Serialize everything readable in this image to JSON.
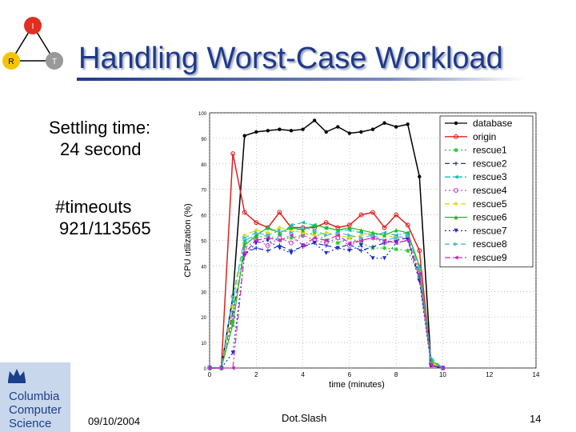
{
  "slide": {
    "title": "Handling Worst-Case Workload",
    "notes": [
      {
        "line1": "Settling time:",
        "line2": "24 second"
      },
      {
        "line1": "#timeouts",
        "line2": "921/113565"
      }
    ],
    "logo_letters": {
      "top": "I",
      "left": "R",
      "right": "T"
    },
    "institution": {
      "line1": "Columbia",
      "line2": "Computer",
      "line3": "Science"
    },
    "footer": {
      "date": "09/10/2004",
      "center": "Dot.Slash",
      "page": "14"
    },
    "colors": {
      "title": "#1f3a8a",
      "institution_bg": "#c9d7ec",
      "logo_top": "#e03020",
      "logo_left": "#f5c400",
      "logo_right": "#999999"
    }
  },
  "chart_data": {
    "type": "line",
    "xlabel": "time (minutes)",
    "ylabel": "CPU utilization (%)",
    "xlim": [
      0,
      14
    ],
    "ylim": [
      0,
      100
    ],
    "xticks": [
      0,
      2,
      4,
      6,
      8,
      10,
      12,
      14
    ],
    "yticks": [
      0,
      10,
      20,
      30,
      40,
      50,
      60,
      70,
      80,
      90,
      100
    ],
    "grid": true,
    "legend_position": "top-right",
    "series": [
      {
        "name": "database",
        "color": "#000000",
        "dash": "",
        "marker": "dot",
        "points": [
          [
            0,
            0
          ],
          [
            0.5,
            0
          ],
          [
            1,
            28
          ],
          [
            1.5,
            91
          ],
          [
            2,
            92.5
          ],
          [
            2.5,
            93
          ],
          [
            3,
            93.5
          ],
          [
            3.5,
            93
          ],
          [
            4,
            93.5
          ],
          [
            4.5,
            97
          ],
          [
            5,
            92.5
          ],
          [
            5.5,
            94.5
          ],
          [
            6,
            92
          ],
          [
            6.5,
            92.5
          ],
          [
            7,
            93.5
          ],
          [
            7.5,
            96
          ],
          [
            8,
            94.5
          ],
          [
            8.5,
            95.5
          ],
          [
            9,
            75
          ],
          [
            9.5,
            1
          ],
          [
            10,
            0
          ]
        ]
      },
      {
        "name": "origin",
        "color": "#e02020",
        "dash": "",
        "marker": "circle",
        "points": [
          [
            0,
            0
          ],
          [
            0.5,
            0
          ],
          [
            1,
            84
          ],
          [
            1.5,
            61
          ],
          [
            2,
            57
          ],
          [
            2.5,
            55
          ],
          [
            3,
            61
          ],
          [
            3.5,
            55
          ],
          [
            4,
            55
          ],
          [
            4.5,
            55
          ],
          [
            5,
            57
          ],
          [
            5.5,
            55
          ],
          [
            6,
            56
          ],
          [
            6.5,
            60
          ],
          [
            7,
            61
          ],
          [
            7.5,
            55
          ],
          [
            8,
            60
          ],
          [
            8.5,
            56
          ],
          [
            9,
            46
          ],
          [
            9.5,
            2
          ],
          [
            10,
            0
          ]
        ]
      },
      {
        "name": "rescue1",
        "color": "#22cc22",
        "dash": "2,3",
        "marker": "star",
        "points": [
          [
            0,
            0
          ],
          [
            0.5,
            0
          ],
          [
            1,
            18
          ],
          [
            1.5,
            49
          ],
          [
            2,
            51
          ],
          [
            2.5,
            52
          ],
          [
            3,
            50
          ],
          [
            3.5,
            51
          ],
          [
            4,
            52
          ],
          [
            4.5,
            53
          ],
          [
            5,
            50
          ],
          [
            5.5,
            49
          ],
          [
            6,
            51
          ],
          [
            6.5,
            49
          ],
          [
            7,
            47
          ],
          [
            7.5,
            47
          ],
          [
            8,
            46.5
          ],
          [
            8.5,
            46
          ],
          [
            9,
            36
          ],
          [
            9.5,
            2
          ],
          [
            10,
            0
          ]
        ]
      },
      {
        "name": "rescue2",
        "color": "#1a2fbf",
        "dash": "6,4",
        "marker": "plus",
        "points": [
          [
            0,
            0
          ],
          [
            0.5,
            0
          ],
          [
            1,
            22
          ],
          [
            1.5,
            45
          ],
          [
            2,
            47
          ],
          [
            2.5,
            46
          ],
          [
            3,
            48
          ],
          [
            3.5,
            46
          ],
          [
            4,
            47.5
          ],
          [
            4.5,
            49
          ],
          [
            5,
            48
          ],
          [
            5.5,
            47
          ],
          [
            6,
            48.5
          ],
          [
            6.5,
            46
          ],
          [
            7,
            47.5
          ],
          [
            7.5,
            49
          ],
          [
            8,
            50
          ],
          [
            8.5,
            51
          ],
          [
            9,
            35
          ],
          [
            9.5,
            3
          ],
          [
            10,
            0
          ]
        ]
      },
      {
        "name": "rescue3",
        "color": "#11bbbb",
        "dash": "7,3,2,3",
        "marker": "triangle-left",
        "points": [
          [
            0,
            0
          ],
          [
            0.5,
            0
          ],
          [
            1,
            26
          ],
          [
            1.5,
            50
          ],
          [
            2,
            52
          ],
          [
            2.5,
            55
          ],
          [
            3,
            52
          ],
          [
            3.5,
            56
          ],
          [
            4,
            57
          ],
          [
            4.5,
            56
          ],
          [
            5,
            55
          ],
          [
            5.5,
            54
          ],
          [
            6,
            54
          ],
          [
            6.5,
            53
          ],
          [
            7,
            52
          ],
          [
            7.5,
            53
          ],
          [
            8,
            52
          ],
          [
            8.5,
            53
          ],
          [
            9,
            39
          ],
          [
            9.5,
            3
          ],
          [
            10,
            0
          ]
        ]
      },
      {
        "name": "rescue4",
        "color": "#cc44cc",
        "dash": "2,3",
        "marker": "circle",
        "points": [
          [
            0,
            0
          ],
          [
            0.5,
            0
          ],
          [
            1,
            20
          ],
          [
            1.5,
            47
          ],
          [
            2,
            50
          ],
          [
            2.5,
            48
          ],
          [
            3,
            51
          ],
          [
            3.5,
            49
          ],
          [
            4,
            52
          ],
          [
            4.5,
            50
          ],
          [
            5,
            49
          ],
          [
            5.5,
            51
          ],
          [
            6,
            48
          ],
          [
            6.5,
            50
          ],
          [
            7,
            51
          ],
          [
            7.5,
            49
          ],
          [
            8,
            50
          ],
          [
            8.5,
            52
          ],
          [
            9,
            37
          ],
          [
            9.5,
            2
          ],
          [
            10,
            0
          ]
        ]
      },
      {
        "name": "rescue5",
        "color": "#dddd00",
        "dash": "6,4",
        "marker": "diamond",
        "points": [
          [
            0,
            0
          ],
          [
            0.5,
            0
          ],
          [
            1,
            24
          ],
          [
            1.5,
            52
          ],
          [
            2,
            54
          ],
          [
            2.5,
            53
          ],
          [
            3,
            55
          ],
          [
            3.5,
            54
          ],
          [
            4,
            53
          ],
          [
            4.5,
            52
          ],
          [
            5,
            53
          ],
          [
            5.5,
            52
          ],
          [
            6,
            51
          ],
          [
            6.5,
            52
          ],
          [
            7,
            53
          ],
          [
            7.5,
            52
          ],
          [
            8,
            51
          ],
          [
            8.5,
            52
          ],
          [
            9,
            38
          ],
          [
            9.5,
            2
          ],
          [
            10,
            0
          ]
        ]
      },
      {
        "name": "rescue6",
        "color": "#22bb22",
        "dash": "",
        "marker": "triangle-up",
        "points": [
          [
            0,
            0
          ],
          [
            0.5,
            0
          ],
          [
            1,
            17
          ],
          [
            1.5,
            48
          ],
          [
            2,
            52
          ],
          [
            2.5,
            55
          ],
          [
            3,
            53
          ],
          [
            3.5,
            55
          ],
          [
            4,
            54
          ],
          [
            4.5,
            56
          ],
          [
            5,
            55
          ],
          [
            5.5,
            54
          ],
          [
            6,
            55
          ],
          [
            6.5,
            54
          ],
          [
            7,
            53
          ],
          [
            7.5,
            52
          ],
          [
            8,
            54
          ],
          [
            8.5,
            53
          ],
          [
            9,
            40
          ],
          [
            9.5,
            3
          ],
          [
            10,
            0
          ]
        ]
      },
      {
        "name": "rescue7",
        "color": "#1a2fbf",
        "dash": "2,3",
        "marker": "triangle-down",
        "points": [
          [
            0,
            0
          ],
          [
            0.5,
            0
          ],
          [
            1,
            6
          ],
          [
            1.5,
            44
          ],
          [
            2,
            49
          ],
          [
            2.5,
            50
          ],
          [
            3,
            47
          ],
          [
            3.5,
            45
          ],
          [
            4,
            48
          ],
          [
            4.5,
            49
          ],
          [
            5,
            45
          ],
          [
            5.5,
            47
          ],
          [
            6,
            46
          ],
          [
            6.5,
            48
          ],
          [
            7,
            43
          ],
          [
            7.5,
            43
          ],
          [
            8,
            49
          ],
          [
            8.5,
            50
          ],
          [
            9,
            34
          ],
          [
            9.5,
            1
          ],
          [
            10,
            0
          ]
        ]
      },
      {
        "name": "rescue8",
        "color": "#44bbdd",
        "dash": "6,4",
        "marker": "triangle-right",
        "points": [
          [
            0,
            0
          ],
          [
            0.5,
            0
          ],
          [
            1,
            28
          ],
          [
            1.5,
            51
          ],
          [
            2,
            53
          ],
          [
            2.5,
            52
          ],
          [
            3,
            54
          ],
          [
            3.5,
            53
          ],
          [
            4,
            55
          ],
          [
            4.5,
            54
          ],
          [
            5,
            52
          ],
          [
            5.5,
            53
          ],
          [
            6,
            52
          ],
          [
            6.5,
            51
          ],
          [
            7,
            52
          ],
          [
            7.5,
            50
          ],
          [
            8,
            51
          ],
          [
            8.5,
            52
          ],
          [
            9,
            39
          ],
          [
            9.5,
            4
          ],
          [
            10,
            0
          ]
        ]
      },
      {
        "name": "rescue9",
        "color": "#cc22cc",
        "dash": "7,3,2,3",
        "marker": "triangle-left",
        "points": [
          [
            0,
            0
          ],
          [
            0.5,
            0
          ],
          [
            1,
            0
          ],
          [
            1.5,
            45
          ],
          [
            2,
            50
          ],
          [
            2.5,
            51
          ],
          [
            3,
            50
          ],
          [
            3.5,
            52
          ],
          [
            4,
            48
          ],
          [
            4.5,
            51
          ],
          [
            5,
            50
          ],
          [
            5.5,
            52
          ],
          [
            6,
            49
          ],
          [
            6.5,
            50
          ],
          [
            7,
            51
          ],
          [
            7.5,
            50
          ],
          [
            8,
            49
          ],
          [
            8.5,
            50
          ],
          [
            9,
            37
          ],
          [
            9.5,
            1
          ],
          [
            10,
            0
          ]
        ]
      }
    ]
  }
}
